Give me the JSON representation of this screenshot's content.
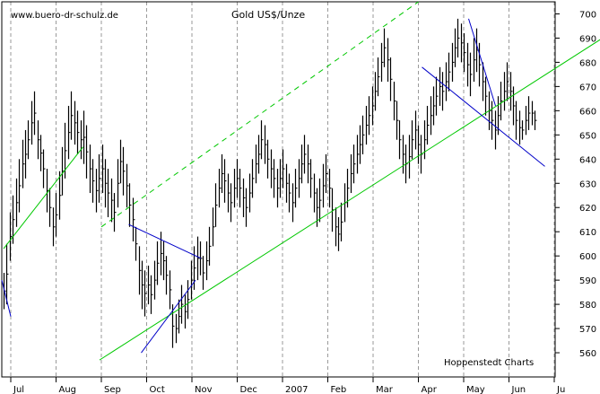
{
  "watermark": "www.buero-dr-schulz.de",
  "credit": "Hoppenstedt Charts",
  "chart_data": {
    "type": "ohlc",
    "title": "Gold US$/Unze",
    "xlabel": "",
    "ylabel": "",
    "ylim": [
      550,
      705
    ],
    "yticks": [
      560,
      570,
      580,
      590,
      600,
      610,
      620,
      630,
      640,
      650,
      660,
      670,
      680,
      690,
      700
    ],
    "x_month_labels": [
      "Jul",
      "Aug",
      "Sep",
      "Oct",
      "Nov",
      "Dec",
      "2007",
      "Feb",
      "Mar",
      "Apr",
      "May",
      "Jun",
      "Ju"
    ],
    "grid": "vertical dashed",
    "colors": {
      "bars": "#000000",
      "trend": "#00c800",
      "channel": "#0000c8"
    },
    "series": [
      {
        "values": [
          [
            593,
            578
          ],
          [
            605,
            580
          ],
          [
            618,
            598
          ],
          [
            625,
            605
          ],
          [
            632,
            612
          ],
          [
            640,
            618
          ],
          [
            648,
            628
          ],
          [
            652,
            632
          ],
          [
            656,
            640
          ],
          [
            664,
            646
          ],
          [
            668,
            650
          ],
          [
            656,
            640
          ],
          [
            650,
            635
          ],
          [
            644,
            628
          ],
          [
            636,
            618
          ],
          [
            628,
            612
          ],
          [
            620,
            604
          ],
          [
            626,
            608
          ],
          [
            635,
            615
          ],
          [
            645,
            625
          ],
          [
            655,
            632
          ],
          [
            662,
            640
          ],
          [
            668,
            648
          ],
          [
            664,
            646
          ],
          [
            660,
            642
          ],
          [
            656,
            640
          ],
          [
            660,
            638
          ],
          [
            654,
            632
          ],
          [
            646,
            626
          ],
          [
            640,
            622
          ],
          [
            636,
            618
          ],
          [
            642,
            622
          ],
          [
            646,
            626
          ],
          [
            640,
            620
          ],
          [
            636,
            616
          ],
          [
            632,
            614
          ],
          [
            626,
            610
          ],
          [
            640,
            620
          ],
          [
            648,
            630
          ],
          [
            645,
            625
          ],
          [
            638,
            620
          ],
          [
            630,
            612
          ],
          [
            624,
            606
          ],
          [
            612,
            598
          ],
          [
            604,
            584
          ],
          [
            598,
            578
          ],
          [
            594,
            575
          ],
          [
            596,
            580
          ],
          [
            592,
            576
          ],
          [
            598,
            582
          ],
          [
            606,
            588
          ],
          [
            610,
            592
          ],
          [
            606,
            590
          ],
          [
            600,
            584
          ],
          [
            594,
            578
          ],
          [
            580,
            562
          ],
          [
            576,
            564
          ],
          [
            582,
            568
          ],
          [
            588,
            572
          ],
          [
            584,
            570
          ],
          [
            590,
            574
          ],
          [
            598,
            582
          ],
          [
            604,
            586
          ],
          [
            608,
            590
          ],
          [
            606,
            592
          ],
          [
            600,
            586
          ],
          [
            606,
            590
          ],
          [
            612,
            596
          ],
          [
            620,
            604
          ],
          [
            630,
            612
          ],
          [
            636,
            620
          ],
          [
            642,
            626
          ],
          [
            640,
            622
          ],
          [
            634,
            618
          ],
          [
            630,
            614
          ],
          [
            636,
            620
          ],
          [
            640,
            624
          ],
          [
            636,
            620
          ],
          [
            632,
            616
          ],
          [
            628,
            612
          ],
          [
            634,
            618
          ],
          [
            640,
            624
          ],
          [
            646,
            630
          ],
          [
            650,
            634
          ],
          [
            656,
            640
          ],
          [
            654,
            638
          ],
          [
            648,
            632
          ],
          [
            644,
            628
          ],
          [
            640,
            624
          ],
          [
            636,
            620
          ],
          [
            640,
            624
          ],
          [
            644,
            628
          ],
          [
            638,
            622
          ],
          [
            634,
            618
          ],
          [
            630,
            614
          ],
          [
            636,
            620
          ],
          [
            640,
            624
          ],
          [
            646,
            630
          ],
          [
            650,
            634
          ],
          [
            646,
            630
          ],
          [
            640,
            624
          ],
          [
            634,
            618
          ],
          [
            628,
            612
          ],
          [
            632,
            614
          ],
          [
            638,
            620
          ],
          [
            642,
            626
          ],
          [
            636,
            620
          ],
          [
            628,
            610
          ],
          [
            620,
            604
          ],
          [
            616,
            602
          ],
          [
            622,
            606
          ],
          [
            630,
            614
          ],
          [
            636,
            620
          ],
          [
            642,
            626
          ],
          [
            646,
            630
          ],
          [
            650,
            634
          ],
          [
            654,
            638
          ],
          [
            658,
            642
          ],
          [
            662,
            646
          ],
          [
            666,
            650
          ],
          [
            670,
            654
          ],
          [
            676,
            660
          ],
          [
            682,
            666
          ],
          [
            688,
            672
          ],
          [
            694,
            678
          ],
          [
            690,
            672
          ],
          [
            682,
            664
          ],
          [
            672,
            656
          ],
          [
            664,
            648
          ],
          [
            656,
            640
          ],
          [
            650,
            634
          ],
          [
            646,
            630
          ],
          [
            650,
            632
          ],
          [
            656,
            640
          ],
          [
            660,
            644
          ],
          [
            654,
            638
          ],
          [
            650,
            634
          ],
          [
            656,
            640
          ],
          [
            662,
            646
          ],
          [
            666,
            650
          ],
          [
            670,
            654
          ],
          [
            674,
            658
          ],
          [
            678,
            662
          ],
          [
            676,
            660
          ],
          [
            680,
            664
          ],
          [
            684,
            668
          ],
          [
            688,
            672
          ],
          [
            694,
            678
          ],
          [
            698,
            682
          ],
          [
            696,
            680
          ],
          [
            692,
            676
          ],
          [
            688,
            670
          ],
          [
            684,
            666
          ],
          [
            690,
            672
          ],
          [
            694,
            676
          ],
          [
            688,
            670
          ],
          [
            680,
            664
          ],
          [
            674,
            658
          ],
          [
            668,
            652
          ],
          [
            664,
            648
          ],
          [
            660,
            644
          ],
          [
            666,
            650
          ],
          [
            672,
            656
          ],
          [
            676,
            660
          ],
          [
            680,
            664
          ],
          [
            676,
            660
          ],
          [
            670,
            654
          ],
          [
            664,
            648
          ],
          [
            660,
            646
          ],
          [
            656,
            648
          ],
          [
            662,
            650
          ],
          [
            666,
            652
          ],
          [
            664,
            654
          ],
          [
            660,
            652
          ]
        ]
      }
    ],
    "trendlines": [
      {
        "color": "green",
        "style": "solid",
        "from": [
          "Jul",
          603
        ],
        "to": [
          "Aug",
          645
        ]
      },
      {
        "color": "green",
        "style": "solid",
        "from": [
          "Sep",
          557
        ],
        "to": [
          "Ju",
          700
        ]
      },
      {
        "color": "green",
        "style": "dashed",
        "from": [
          "Sep",
          612
        ],
        "to": [
          "Apr",
          705
        ]
      },
      {
        "color": "blue",
        "style": "solid",
        "from": [
          "Oct",
          560
        ],
        "to": [
          "Nov",
          590
        ]
      },
      {
        "color": "blue",
        "style": "solid",
        "from": [
          "Oct",
          613
        ],
        "to": [
          "Nov",
          599
        ]
      },
      {
        "color": "blue",
        "style": "solid",
        "from": [
          "Jun",
          698
        ],
        "to": [
          "Jun",
          662
        ]
      },
      {
        "color": "blue",
        "style": "solid",
        "from": [
          "Apr",
          678
        ],
        "to": [
          "Jun",
          637
        ]
      },
      {
        "color": "blue",
        "style": "solid",
        "from": [
          "Jul",
          590
        ],
        "to": [
          "Jul",
          575
        ]
      }
    ]
  }
}
